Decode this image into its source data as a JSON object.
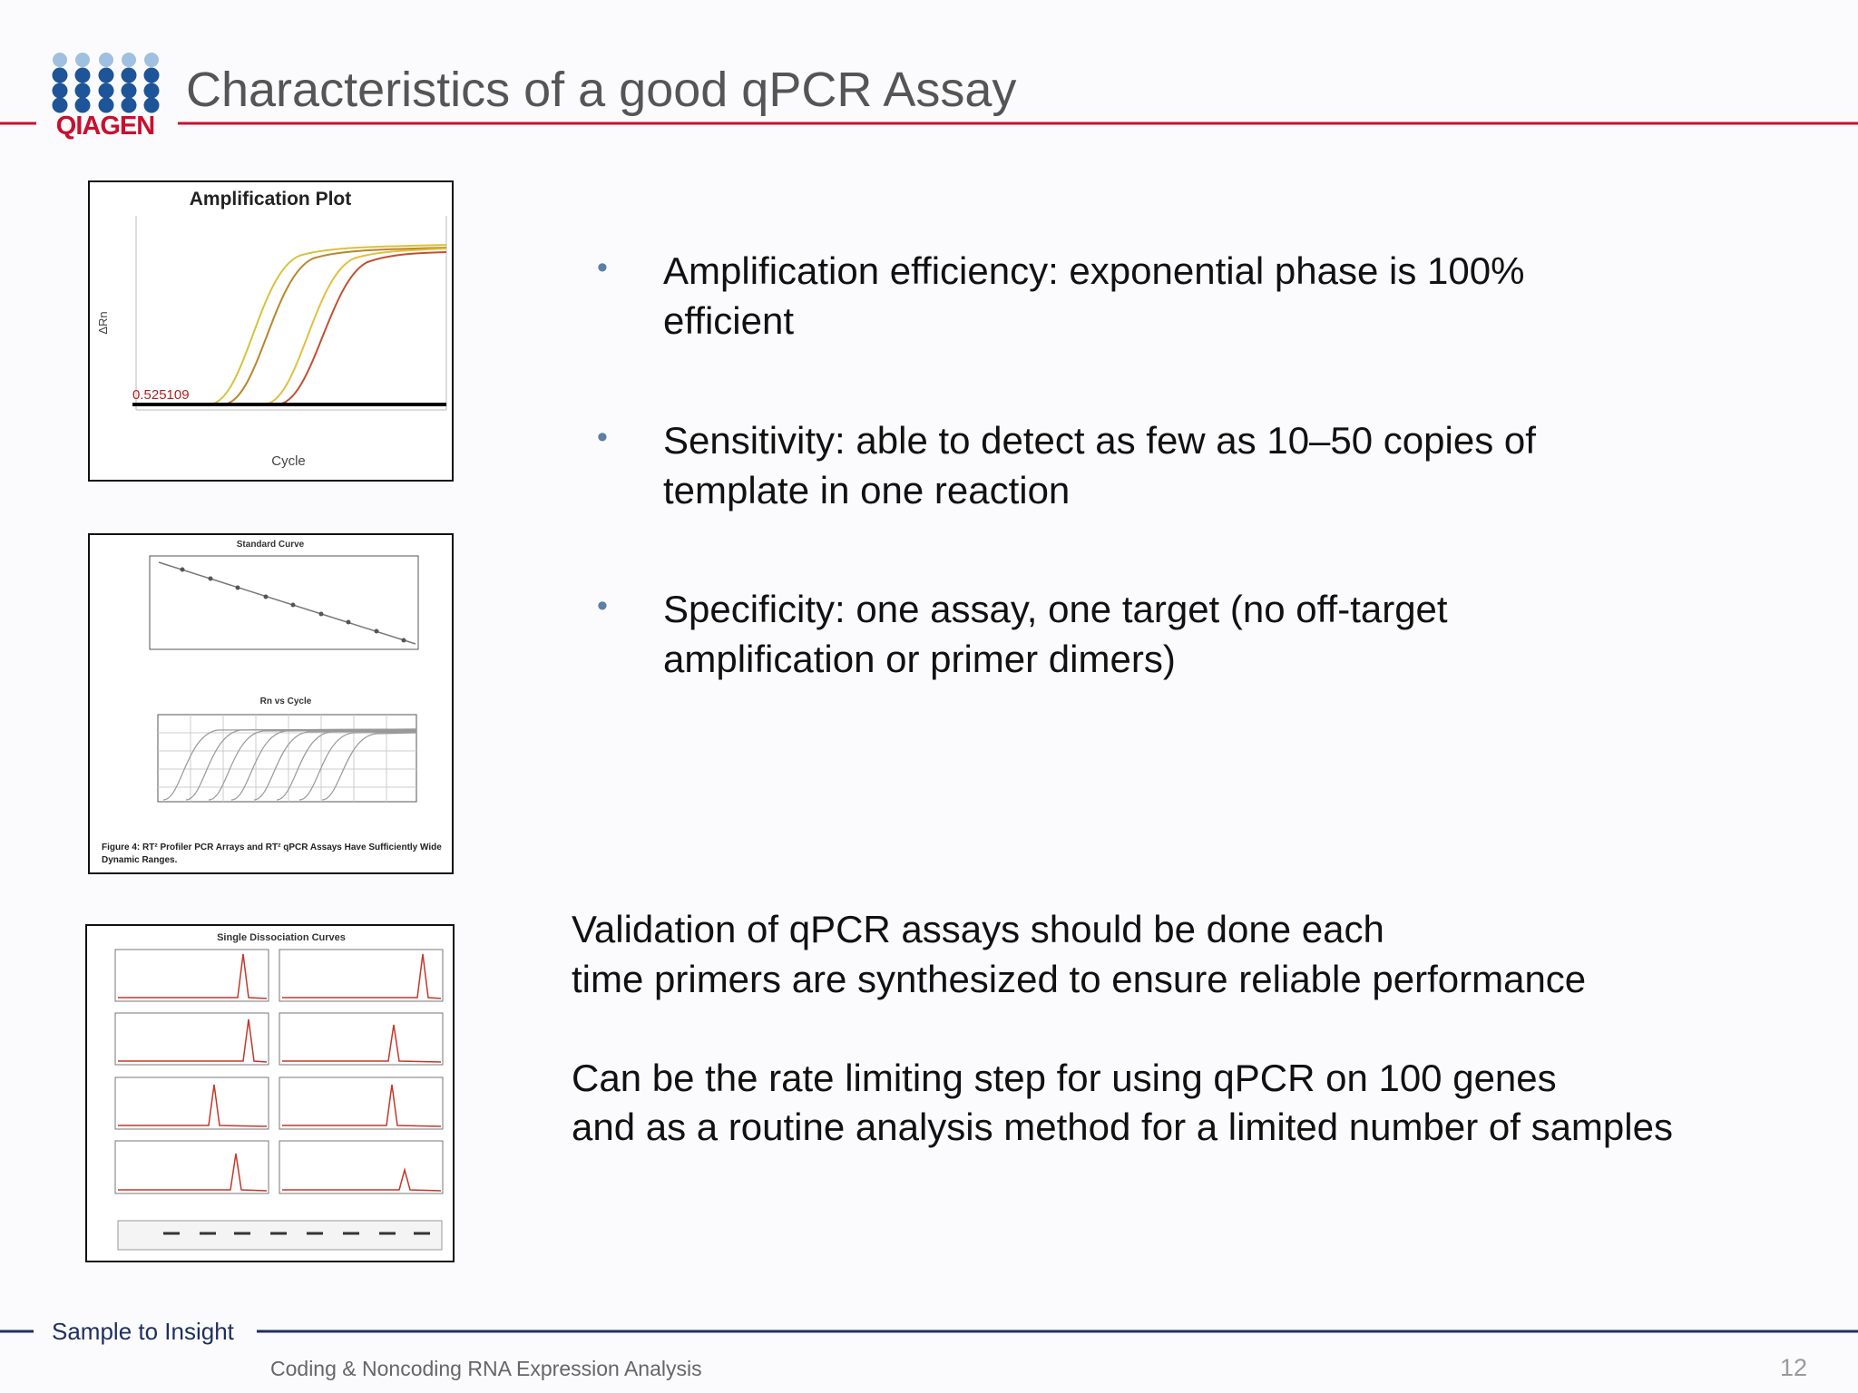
{
  "header": {
    "logo_text": "QIAGEN",
    "title": "Characteristics of a good qPCR Assay"
  },
  "figures": [
    {
      "title": "Amplification Plot",
      "x_label": "Cycle",
      "y_label": "ΔRn",
      "threshold_label": "0.525109"
    },
    {
      "title_a": "Standard Curve",
      "title_b": "Rn vs Cycle",
      "caption": "Figure 4: RT² Profiler PCR Arrays and RT² qPCR Assays Have Sufficiently Wide Dynamic Ranges."
    },
    {
      "title": "Single Dissociation Curves"
    }
  ],
  "bullets": [
    "Amplification efficiency: exponential phase is 100% efficient",
    "Sensitivity: able to detect as few as 10–50 copies of template in one reaction",
    "Specificity: one assay, one target (no off-target amplification or primer dimers)"
  ],
  "paragraphs": [
    {
      "lines": [
        "Validation of qPCR assays should be done each",
        "time primers are synthesized to ensure reliable performance"
      ]
    },
    {
      "lines": [
        "Can be the rate limiting step for using qPCR on 100 genes",
        "and as a routine analysis method for a limited number of samples"
      ]
    }
  ],
  "footer": {
    "tagline": "Sample to Insight",
    "text": "Coding & Noncoding RNA Expression Analysis",
    "page_number": "12"
  }
}
